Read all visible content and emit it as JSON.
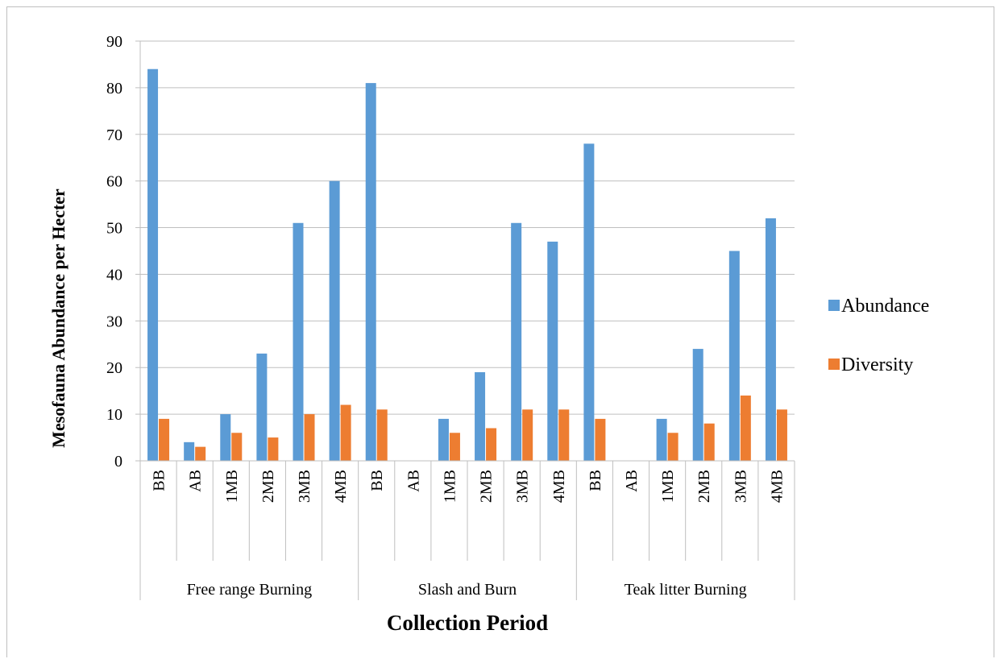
{
  "chart_data": {
    "type": "bar",
    "title": "",
    "xlabel": "Collection Period",
    "ylabel": "Mesofauna Abundance per  Hecter",
    "ylim": [
      0,
      90
    ],
    "yticks": [
      0,
      10,
      20,
      30,
      40,
      50,
      60,
      70,
      80,
      90
    ],
    "grid": true,
    "legend_position": "right",
    "groups": [
      {
        "label": "Free range Burning",
        "categories": [
          "BB",
          "AB",
          "1MB",
          "2MB",
          "3MB",
          "4MB"
        ]
      },
      {
        "label": "Slash and Burn",
        "categories": [
          "BB",
          "AB",
          "1MB",
          "2MB",
          "3MB",
          "4MB"
        ]
      },
      {
        "label": "Teak litter Burning",
        "categories": [
          "BB",
          "AB",
          "1MB",
          "2MB",
          "3MB",
          "4MB"
        ]
      }
    ],
    "series": [
      {
        "name": "Abundance",
        "color": "#5b9bd5",
        "values": [
          84,
          4,
          10,
          23,
          51,
          60,
          81,
          0,
          9,
          19,
          51,
          47,
          68,
          0,
          9,
          24,
          45,
          52
        ]
      },
      {
        "name": "Diversity",
        "color": "#ed7d31",
        "values": [
          9,
          3,
          6,
          5,
          10,
          12,
          11,
          0,
          6,
          7,
          11,
          11,
          9,
          0,
          6,
          8,
          14,
          11
        ]
      }
    ]
  }
}
